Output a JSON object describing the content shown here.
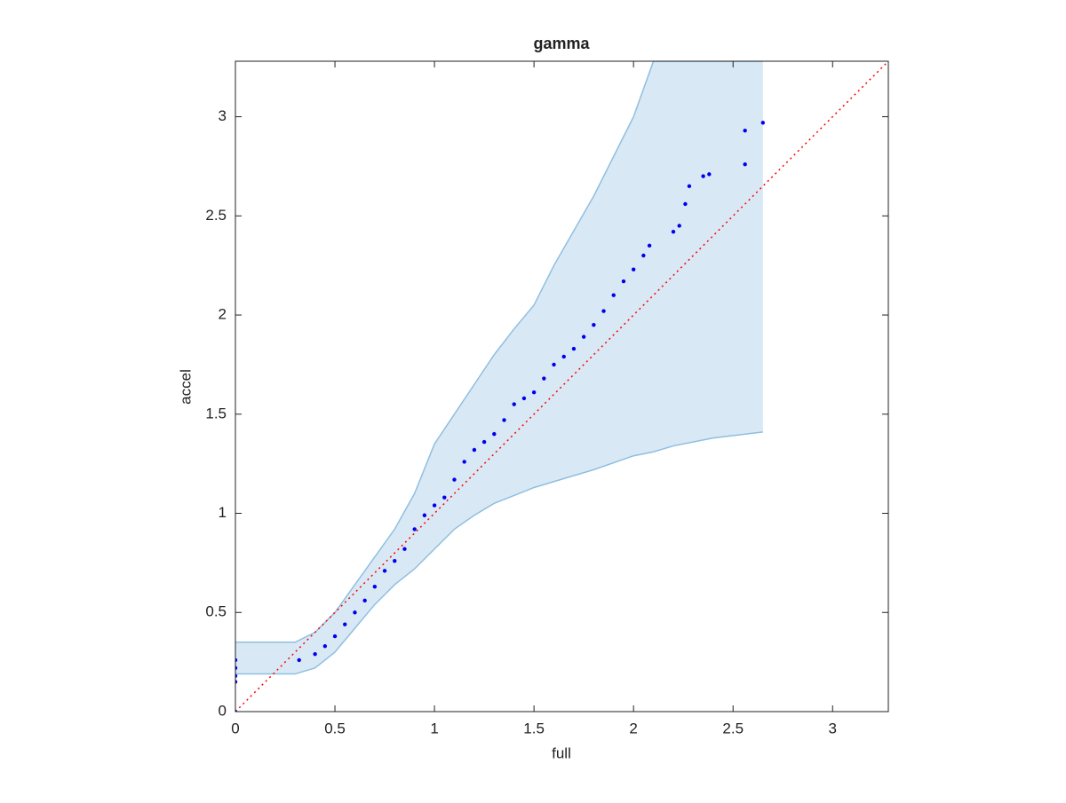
{
  "chart_data": {
    "type": "scatter",
    "title": "gamma",
    "x_label": "full",
    "y_label": "accel",
    "xlim": [
      0,
      3.28
    ],
    "ylim": [
      0,
      3.28
    ],
    "xticks": [
      0,
      0.5,
      1,
      1.5,
      2,
      2.5,
      3
    ],
    "yticks": [
      0,
      0.5,
      1,
      1.5,
      2,
      2.5,
      3
    ],
    "points": {
      "color": "#0000ee",
      "x": [
        0,
        0,
        0,
        0,
        0,
        0.32,
        0.4,
        0.45,
        0.5,
        0.55,
        0.6,
        0.65,
        0.7,
        0.75,
        0.8,
        0.85,
        0.9,
        0.95,
        1.0,
        1.05,
        1.1,
        1.15,
        1.2,
        1.25,
        1.3,
        1.35,
        1.4,
        1.45,
        1.5,
        1.55,
        1.6,
        1.65,
        1.7,
        1.75,
        1.8,
        1.85,
        1.9,
        1.95,
        2.0,
        2.05,
        2.08,
        2.2,
        2.23,
        2.26,
        2.28,
        2.35,
        2.38,
        2.56,
        2.56,
        2.65
      ],
      "y": [
        0,
        0.15,
        0.18,
        0.22,
        0.26,
        0.26,
        0.29,
        0.33,
        0.38,
        0.44,
        0.5,
        0.56,
        0.63,
        0.71,
        0.76,
        0.82,
        0.92,
        0.99,
        1.04,
        1.08,
        1.17,
        1.26,
        1.32,
        1.36,
        1.4,
        1.47,
        1.55,
        1.58,
        1.61,
        1.68,
        1.75,
        1.79,
        1.83,
        1.89,
        1.95,
        2.02,
        2.1,
        2.17,
        2.23,
        2.3,
        2.35,
        2.42,
        2.45,
        2.56,
        2.65,
        2.7,
        2.71,
        2.76,
        2.93,
        2.97
      ]
    },
    "band": {
      "fill": "#d9e8f5",
      "color": "#8fbfe0",
      "x": [
        0,
        0.3,
        0.4,
        0.5,
        0.6,
        0.7,
        0.8,
        0.9,
        1.0,
        1.1,
        1.2,
        1.3,
        1.4,
        1.5,
        1.6,
        1.8,
        2.0,
        2.1,
        2.2,
        2.4,
        2.65
      ],
      "lower": [
        0.19,
        0.19,
        0.22,
        0.3,
        0.42,
        0.54,
        0.64,
        0.72,
        0.82,
        0.92,
        0.99,
        1.05,
        1.09,
        1.13,
        1.16,
        1.22,
        1.29,
        1.31,
        1.34,
        1.38,
        1.41
      ],
      "upper": [
        0.35,
        0.35,
        0.4,
        0.5,
        0.64,
        0.78,
        0.92,
        1.1,
        1.35,
        1.5,
        1.65,
        1.8,
        1.93,
        2.05,
        2.25,
        2.6,
        3.0,
        3.28,
        3.28,
        3.28,
        3.28
      ]
    },
    "reference_line": {
      "color": "#ff0000",
      "x": [
        0,
        3.28
      ],
      "y": [
        0,
        3.28
      ]
    }
  }
}
